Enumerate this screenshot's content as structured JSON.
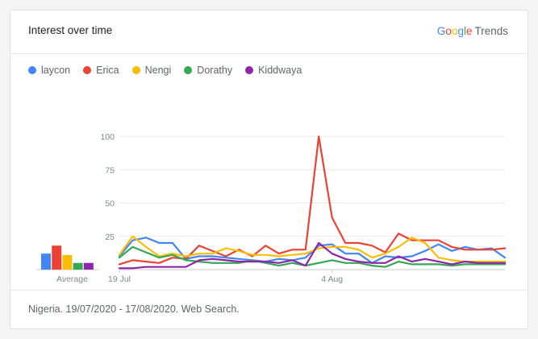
{
  "header": {
    "title": "Interest over time",
    "brand_google_letters": [
      "G",
      "o",
      "o",
      "g",
      "l",
      "e"
    ],
    "brand_google_colors": [
      "#4285F4",
      "#EA4335",
      "#FBBC05",
      "#4285F4",
      "#34A853",
      "#EA4335"
    ],
    "brand_trends": "Trends"
  },
  "footer": {
    "text": "Nigeria. 19/07/2020 - 17/08/2020. Web Search."
  },
  "chart_data": {
    "type": "line",
    "x": [
      "2020-07-19",
      "2020-07-20",
      "2020-07-21",
      "2020-07-22",
      "2020-07-23",
      "2020-07-24",
      "2020-07-25",
      "2020-07-26",
      "2020-07-27",
      "2020-07-28",
      "2020-07-29",
      "2020-07-30",
      "2020-07-31",
      "2020-08-01",
      "2020-08-02",
      "2020-08-03",
      "2020-08-04",
      "2020-08-05",
      "2020-08-06",
      "2020-08-07",
      "2020-08-08",
      "2020-08-09",
      "2020-08-10",
      "2020-08-11",
      "2020-08-12",
      "2020-08-13",
      "2020-08-14",
      "2020-08-15",
      "2020-08-16",
      "2020-08-17"
    ],
    "x_tick_labels": [
      {
        "at": "2020-07-19",
        "label": "19 Jul"
      },
      {
        "at": "2020-08-04",
        "label": "4 Aug"
      }
    ],
    "ylim": [
      0,
      100
    ],
    "yticks": [
      25,
      50,
      75,
      100
    ],
    "grid": true,
    "legend_position": "top-left",
    "series": [
      {
        "name": "laycon",
        "color": "#4285F4",
        "values": [
          10,
          22,
          24,
          20,
          20,
          8,
          10,
          10,
          9,
          8,
          7,
          6,
          8,
          7,
          9,
          18,
          19,
          12,
          12,
          5,
          10,
          9,
          10,
          14,
          19,
          14,
          17,
          15,
          16,
          9
        ]
      },
      {
        "name": "Erica",
        "color": "#EA4335",
        "values": [
          4,
          7,
          6,
          5,
          9,
          8,
          18,
          14,
          10,
          15,
          10,
          18,
          12,
          15,
          15,
          100,
          39,
          20,
          20,
          18,
          13,
          27,
          22,
          22,
          22,
          17,
          15,
          15,
          15,
          16
        ]
      },
      {
        "name": "Nengi",
        "color": "#FBBC05",
        "values": [
          11,
          25,
          17,
          10,
          12,
          10,
          12,
          12,
          16,
          14,
          11,
          11,
          10,
          11,
          12,
          16,
          17,
          17,
          15,
          9,
          12,
          17,
          24,
          20,
          9,
          7,
          6,
          6,
          6,
          6
        ]
      },
      {
        "name": "Dorathy",
        "color": "#34A853",
        "values": [
          9,
          17,
          13,
          9,
          11,
          7,
          6,
          5,
          5,
          5,
          7,
          5,
          3,
          5,
          3,
          5,
          7,
          5,
          5,
          3,
          2,
          6,
          4,
          4,
          4,
          3,
          4,
          4,
          4,
          4
        ]
      },
      {
        "name": "Kiddwaya",
        "color": "#8E24AA",
        "values": [
          1,
          1,
          2,
          2,
          2,
          2,
          7,
          8,
          7,
          6,
          6,
          6,
          5,
          7,
          3,
          20,
          12,
          8,
          6,
          5,
          5,
          10,
          6,
          8,
          6,
          4,
          6,
          5,
          5,
          5
        ]
      }
    ],
    "average": {
      "label": "Average",
      "values": [
        12,
        18,
        11,
        5,
        5
      ]
    }
  }
}
